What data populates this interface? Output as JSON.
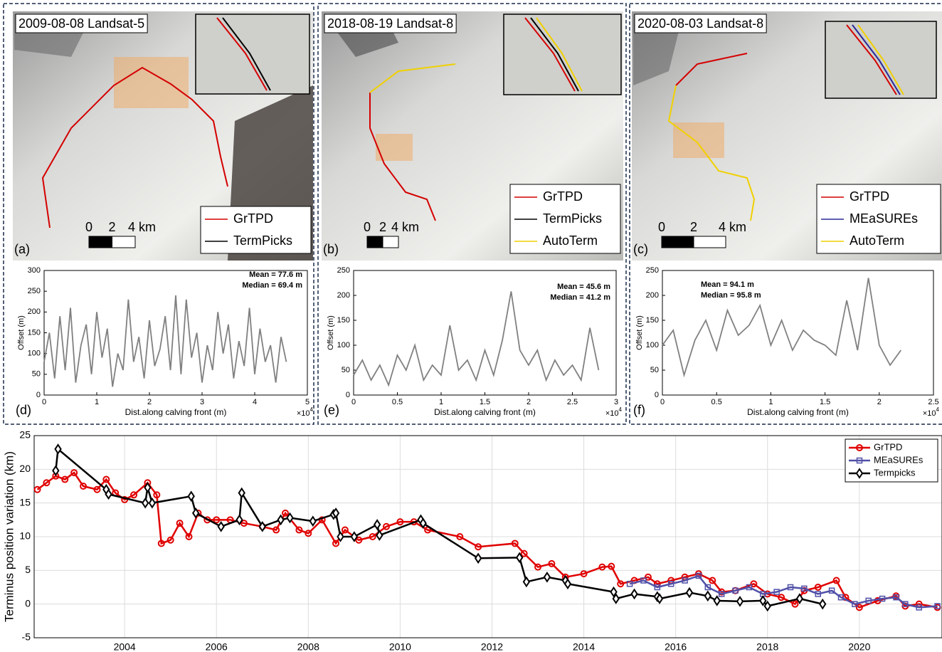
{
  "image_panels": [
    {
      "title": "2009-08-08 Landsat-5",
      "panel_label": "(a)",
      "scale_labels": [
        "0",
        "2",
        "4 km"
      ],
      "legend": [
        {
          "name": "GrTPD",
          "color": "#d40000"
        },
        {
          "name": "TermPicks",
          "color": "#000000"
        }
      ]
    },
    {
      "title": "2018-08-19 Landsat-8",
      "panel_label": "(b)",
      "scale_labels": [
        "0",
        "2",
        "4 km"
      ],
      "legend": [
        {
          "name": "GrTPD",
          "color": "#d40000"
        },
        {
          "name": "TermPicks",
          "color": "#000000"
        },
        {
          "name": "AutoTerm",
          "color": "#f0d000"
        }
      ]
    },
    {
      "title": "2020-08-03 Landsat-8",
      "panel_label": "(c)",
      "scale_labels": [
        "0",
        "2",
        "4 km"
      ],
      "legend": [
        {
          "name": "GrTPD",
          "color": "#d40000"
        },
        {
          "name": "MEaSUREs",
          "color": "#2a2a9a"
        },
        {
          "name": "AutoTerm",
          "color": "#f0d000"
        }
      ]
    }
  ],
  "chart_data": [
    {
      "type": "line",
      "panel_label": "(d)",
      "x_label": "Dist.along calving front (m)",
      "y_label": "Offset (m)",
      "x_exponent": {
        "base": "×10",
        "power": "4"
      },
      "annotations": [
        "Mean = 77.6 m",
        "Median = 69.4 m"
      ],
      "xlim": [
        0,
        5
      ],
      "xticks": [
        0,
        1,
        2,
        3,
        4,
        5
      ],
      "ylim": [
        0,
        300
      ],
      "yticks": [
        0,
        50,
        100,
        150,
        200,
        250,
        300
      ],
      "series": [
        {
          "color": "#808080",
          "x": [
            0,
            0.1,
            0.2,
            0.3,
            0.4,
            0.5,
            0.6,
            0.7,
            0.8,
            0.9,
            1,
            1.1,
            1.2,
            1.3,
            1.4,
            1.5,
            1.6,
            1.7,
            1.8,
            1.9,
            2,
            2.1,
            2.2,
            2.3,
            2.4,
            2.5,
            2.6,
            2.7,
            2.8,
            2.9,
            3,
            3.1,
            3.2,
            3.3,
            3.4,
            3.5,
            3.6,
            3.7,
            3.8,
            3.9,
            4,
            4.1,
            4.2,
            4.3,
            4.4,
            4.5,
            4.6
          ],
          "values": [
            80,
            150,
            40,
            190,
            60,
            210,
            30,
            120,
            170,
            50,
            200,
            90,
            160,
            20,
            100,
            60,
            230,
            80,
            140,
            40,
            180,
            70,
            110,
            190,
            60,
            240,
            50,
            230,
            90,
            150,
            30,
            120,
            60,
            200,
            100,
            170,
            40,
            130,
            70,
            210,
            50,
            160,
            80,
            120,
            30,
            140,
            80
          ]
        }
      ]
    },
    {
      "type": "line",
      "panel_label": "(e)",
      "x_label": "Dist.along calving front (m)",
      "y_label": "Offset (m)",
      "x_exponent": {
        "base": "×10",
        "power": "4"
      },
      "annotations": [
        "Mean = 45.6 m",
        "Median = 41.2 m"
      ],
      "xlim": [
        0,
        3
      ],
      "xticks": [
        0,
        0.5,
        1,
        1.5,
        2,
        2.5,
        3
      ],
      "ylim": [
        0,
        250
      ],
      "yticks": [
        0,
        50,
        100,
        150,
        200,
        250
      ],
      "series": [
        {
          "color": "#808080",
          "x": [
            0,
            0.1,
            0.2,
            0.3,
            0.4,
            0.5,
            0.6,
            0.7,
            0.8,
            0.9,
            1,
            1.1,
            1.2,
            1.3,
            1.4,
            1.5,
            1.6,
            1.7,
            1.8,
            1.9,
            2,
            2.1,
            2.2,
            2.3,
            2.4,
            2.5,
            2.6,
            2.7,
            2.8
          ],
          "values": [
            40,
            70,
            30,
            60,
            20,
            80,
            50,
            100,
            30,
            60,
            40,
            140,
            50,
            70,
            30,
            90,
            40,
            110,
            208,
            90,
            60,
            90,
            30,
            70,
            40,
            60,
            30,
            135,
            50
          ]
        }
      ]
    },
    {
      "type": "line",
      "panel_label": "(f)",
      "x_label": "Dist.along calving front (m)",
      "y_label": "Offset (m)",
      "x_exponent": {
        "base": "×10",
        "power": "4"
      },
      "annotations": [
        "Mean = 94.1 m",
        "Median = 95.8 m"
      ],
      "xlim": [
        0,
        2.5
      ],
      "xticks": [
        0,
        0.5,
        1,
        1.5,
        2,
        2.5
      ],
      "ylim": [
        0,
        250
      ],
      "yticks": [
        0,
        50,
        100,
        150,
        200,
        250
      ],
      "series": [
        {
          "color": "#808080",
          "x": [
            0,
            0.1,
            0.2,
            0.3,
            0.4,
            0.5,
            0.6,
            0.7,
            0.8,
            0.9,
            1,
            1.1,
            1.2,
            1.3,
            1.4,
            1.5,
            1.6,
            1.7,
            1.8,
            1.9,
            2,
            2.1,
            2.2
          ],
          "values": [
            100,
            130,
            40,
            110,
            150,
            90,
            170,
            120,
            140,
            180,
            100,
            150,
            90,
            130,
            110,
            100,
            80,
            190,
            90,
            235,
            100,
            60,
            90
          ]
        }
      ]
    },
    {
      "type": "line",
      "y_label": "Terminus position variation (km)",
      "grid": true,
      "legend": "upper right",
      "xlim": [
        2002.03,
        2021.8
      ],
      "xticks": [
        2004,
        2006,
        2008,
        2010,
        2012,
        2014,
        2016,
        2018,
        2020
      ],
      "ylim": [
        -5,
        25
      ],
      "yticks": [
        -5,
        0,
        5,
        10,
        15,
        20,
        25
      ],
      "series": [
        {
          "name": "GrTPD",
          "color": "#e00000",
          "marker": "circle",
          "x": [
            2002.1,
            2002.3,
            2002.5,
            2002.7,
            2002.9,
            2003.1,
            2003.4,
            2003.6,
            2003.8,
            2004.0,
            2004.2,
            2004.5,
            2004.7,
            2004.8,
            2005.0,
            2005.2,
            2005.4,
            2005.6,
            2005.8,
            2006.0,
            2006.3,
            2006.6,
            2007.0,
            2007.3,
            2007.5,
            2007.8,
            2008.0,
            2008.3,
            2008.6,
            2008.8,
            2009.1,
            2009.4,
            2009.7,
            2010.0,
            2010.3,
            2010.6,
            2011.3,
            2011.7,
            2012.5,
            2012.7,
            2013.0,
            2013.3,
            2013.6,
            2014.0,
            2014.4,
            2014.6,
            2014.8,
            2015.1,
            2015.4,
            2015.6,
            2015.9,
            2016.2,
            2016.5,
            2016.8,
            2017.0,
            2017.3,
            2017.7,
            2018.0,
            2018.3,
            2018.6,
            2018.8,
            2019.1,
            2019.5,
            2019.7,
            2020.0,
            2020.4,
            2020.8,
            2021.0,
            2021.3,
            2021.7
          ],
          "values": [
            17,
            18,
            19,
            18.5,
            19.5,
            17.5,
            17,
            18.5,
            16.5,
            15.5,
            16.2,
            18,
            16.2,
            9,
            9.5,
            12,
            10,
            13.5,
            12.5,
            12.5,
            12.5,
            12,
            11.5,
            11,
            13.5,
            11,
            10.5,
            12.5,
            9,
            11,
            9.5,
            10,
            11.5,
            12.2,
            12.2,
            11,
            10,
            8.5,
            9,
            7.5,
            5.5,
            6,
            4,
            4.5,
            5.5,
            5.6,
            3,
            3.5,
            4,
            3,
            3.5,
            4,
            4.5,
            3.5,
            1.8,
            2,
            3,
            1.5,
            1,
            0,
            2,
            2.5,
            3.5,
            1,
            -0.5,
            0.5,
            1.2,
            -0.3,
            0,
            -0.5
          ]
        },
        {
          "name": "MEaSUREs",
          "color": "#5050a8",
          "marker": "square",
          "x": [
            2015.0,
            2015.3,
            2015.6,
            2015.9,
            2016.2,
            2016.5,
            2016.7,
            2017.0,
            2017.3,
            2017.6,
            2017.9,
            2018.2,
            2018.5,
            2018.8,
            2019.1,
            2019.4,
            2019.6,
            2019.9,
            2020.2,
            2020.5,
            2020.8,
            2021.0,
            2021.3,
            2021.7
          ],
          "values": [
            3,
            3.5,
            2.5,
            3,
            3.5,
            4.2,
            2.5,
            1.5,
            2,
            2.5,
            1.5,
            1.8,
            2.5,
            2.3,
            1.5,
            2,
            1,
            0,
            0.5,
            0.8,
            1,
            0,
            -0.5,
            -0.3
          ]
        },
        {
          "name": "Termpicks",
          "color": "#000000",
          "marker": "diamond",
          "x": [
            2002.5,
            2002.55,
            2003.6,
            2003.65,
            2004.45,
            2004.5,
            2004.6,
            2005.45,
            2005.55,
            2006.1,
            2006.5,
            2006.55,
            2007.0,
            2007.4,
            2007.6,
            2008.1,
            2008.55,
            2008.6,
            2008.7,
            2009.0,
            2009.5,
            2009.55,
            2010.45,
            2010.5,
            2011.7,
            2012.6,
            2012.75,
            2013.2,
            2013.6,
            2013.65,
            2014.65,
            2014.7,
            2015.1,
            2015.6,
            2015.65,
            2016.3,
            2016.7,
            2016.9,
            2017.4,
            2017.9,
            2018.0,
            2018.7,
            2019.2
          ],
          "values": [
            19.8,
            23,
            17,
            16.3,
            15,
            17.3,
            15,
            16,
            13.5,
            11.5,
            12.5,
            16.5,
            11.5,
            12.5,
            12.8,
            12.3,
            13.3,
            13.5,
            10,
            10,
            11.8,
            10.2,
            12.5,
            12,
            6.8,
            6.9,
            3.3,
            4,
            3.5,
            3,
            1.8,
            0.8,
            1.5,
            1.1,
            0.8,
            1.7,
            1.2,
            0.5,
            0.4,
            0.5,
            -0.3,
            0.8,
            0
          ]
        }
      ]
    }
  ]
}
